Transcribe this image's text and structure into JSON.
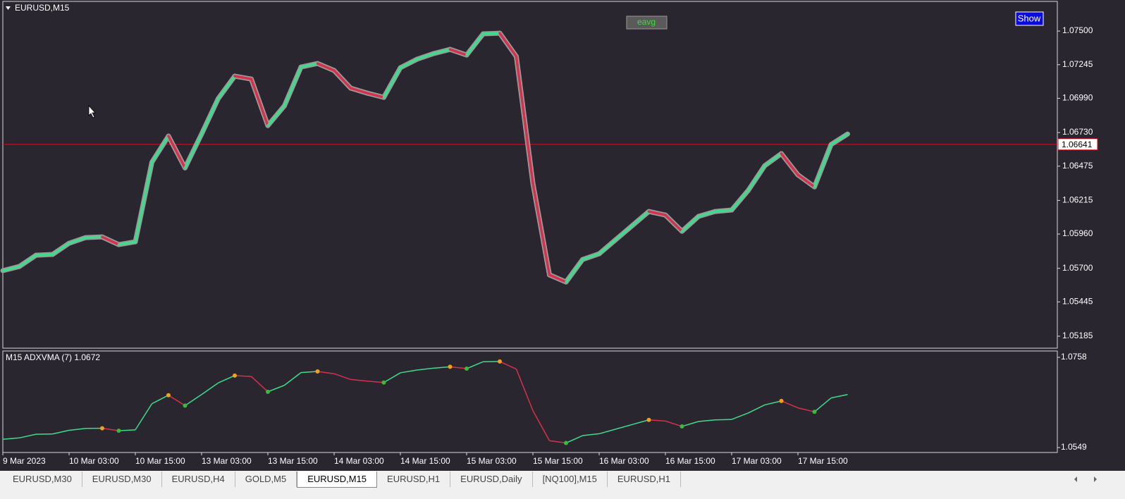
{
  "main_chart": {
    "type": "line",
    "title": "EURUSD,M15",
    "series": {
      "colors": {
        "up": "#3ddc8a",
        "down": "#d6304c"
      },
      "values": [
        1.05682,
        1.05714,
        1.05799,
        1.05805,
        1.0589,
        1.05933,
        1.05938,
        1.0588,
        1.05901,
        1.06505,
        1.06703,
        1.06462,
        1.06719,
        1.06987,
        1.07158,
        1.07136,
        1.06783,
        1.06933,
        1.07227,
        1.07254,
        1.07201,
        1.07067,
        1.07029,
        1.06997,
        1.07222,
        1.07286,
        1.07329,
        1.07361,
        1.07318,
        1.07479,
        1.07484,
        1.07307,
        1.06345,
        1.0565,
        1.05596,
        1.05767,
        1.0581,
        1.05917,
        1.06024,
        1.06131,
        1.06104,
        1.05981,
        1.06094,
        1.06131,
        1.06142,
        1.06291,
        1.06479,
        1.0657,
        1.06409,
        1.06318,
        1.06639,
        1.06719
      ]
    },
    "ylim": [
      1.05094,
      1.07725
    ],
    "yticks": [
      {
        "value": 1.075,
        "label": "1.07500"
      },
      {
        "value": 1.07245,
        "label": "1.07245"
      },
      {
        "value": 1.0699,
        "label": "1.06990"
      },
      {
        "value": 1.0673,
        "label": "1.06730"
      },
      {
        "value": 1.06475,
        "label": "1.06475"
      },
      {
        "value": 1.06215,
        "label": "1.06215"
      },
      {
        "value": 1.0596,
        "label": "1.05960"
      },
      {
        "value": 1.057,
        "label": "1.05700"
      },
      {
        "value": 1.05445,
        "label": "1.05445"
      },
      {
        "value": 1.05185,
        "label": "1.05185"
      }
    ],
    "price_line": {
      "value": 1.06641,
      "label": "1.06641",
      "color": "#c8101e"
    },
    "buttons": {
      "eavg": "eavg",
      "show": "Show"
    }
  },
  "indicator": {
    "title": "M15 ADXVMA (7) 1.0672",
    "ylim": [
      1.05376,
      1.07727
    ],
    "yticks": [
      1.0758,
      1.0549
    ],
    "dot_colors": {
      "top": "#f0a020",
      "bottom": "#3cb83c"
    }
  },
  "x_axis": {
    "labels": [
      "9 Mar 2023",
      "10 Mar 03:00",
      "10 Mar 15:00",
      "13 Mar 03:00",
      "13 Mar 15:00",
      "14 Mar 03:00",
      "14 Mar 15:00",
      "15 Mar 03:00",
      "15 Mar 15:00",
      "16 Mar 03:00",
      "16 Mar 15:00",
      "17 Mar 03:00",
      "17 Mar 15:00"
    ]
  },
  "tabs": {
    "items": [
      "EURUSD,M30",
      "EURUSD,M30",
      "EURUSD,H4",
      "GOLD,M5",
      "EURUSD,M15",
      "EURUSD,H1",
      "EURUSD,Daily",
      "[NQ100],M15",
      "EURUSD,H1"
    ],
    "active": 4
  }
}
